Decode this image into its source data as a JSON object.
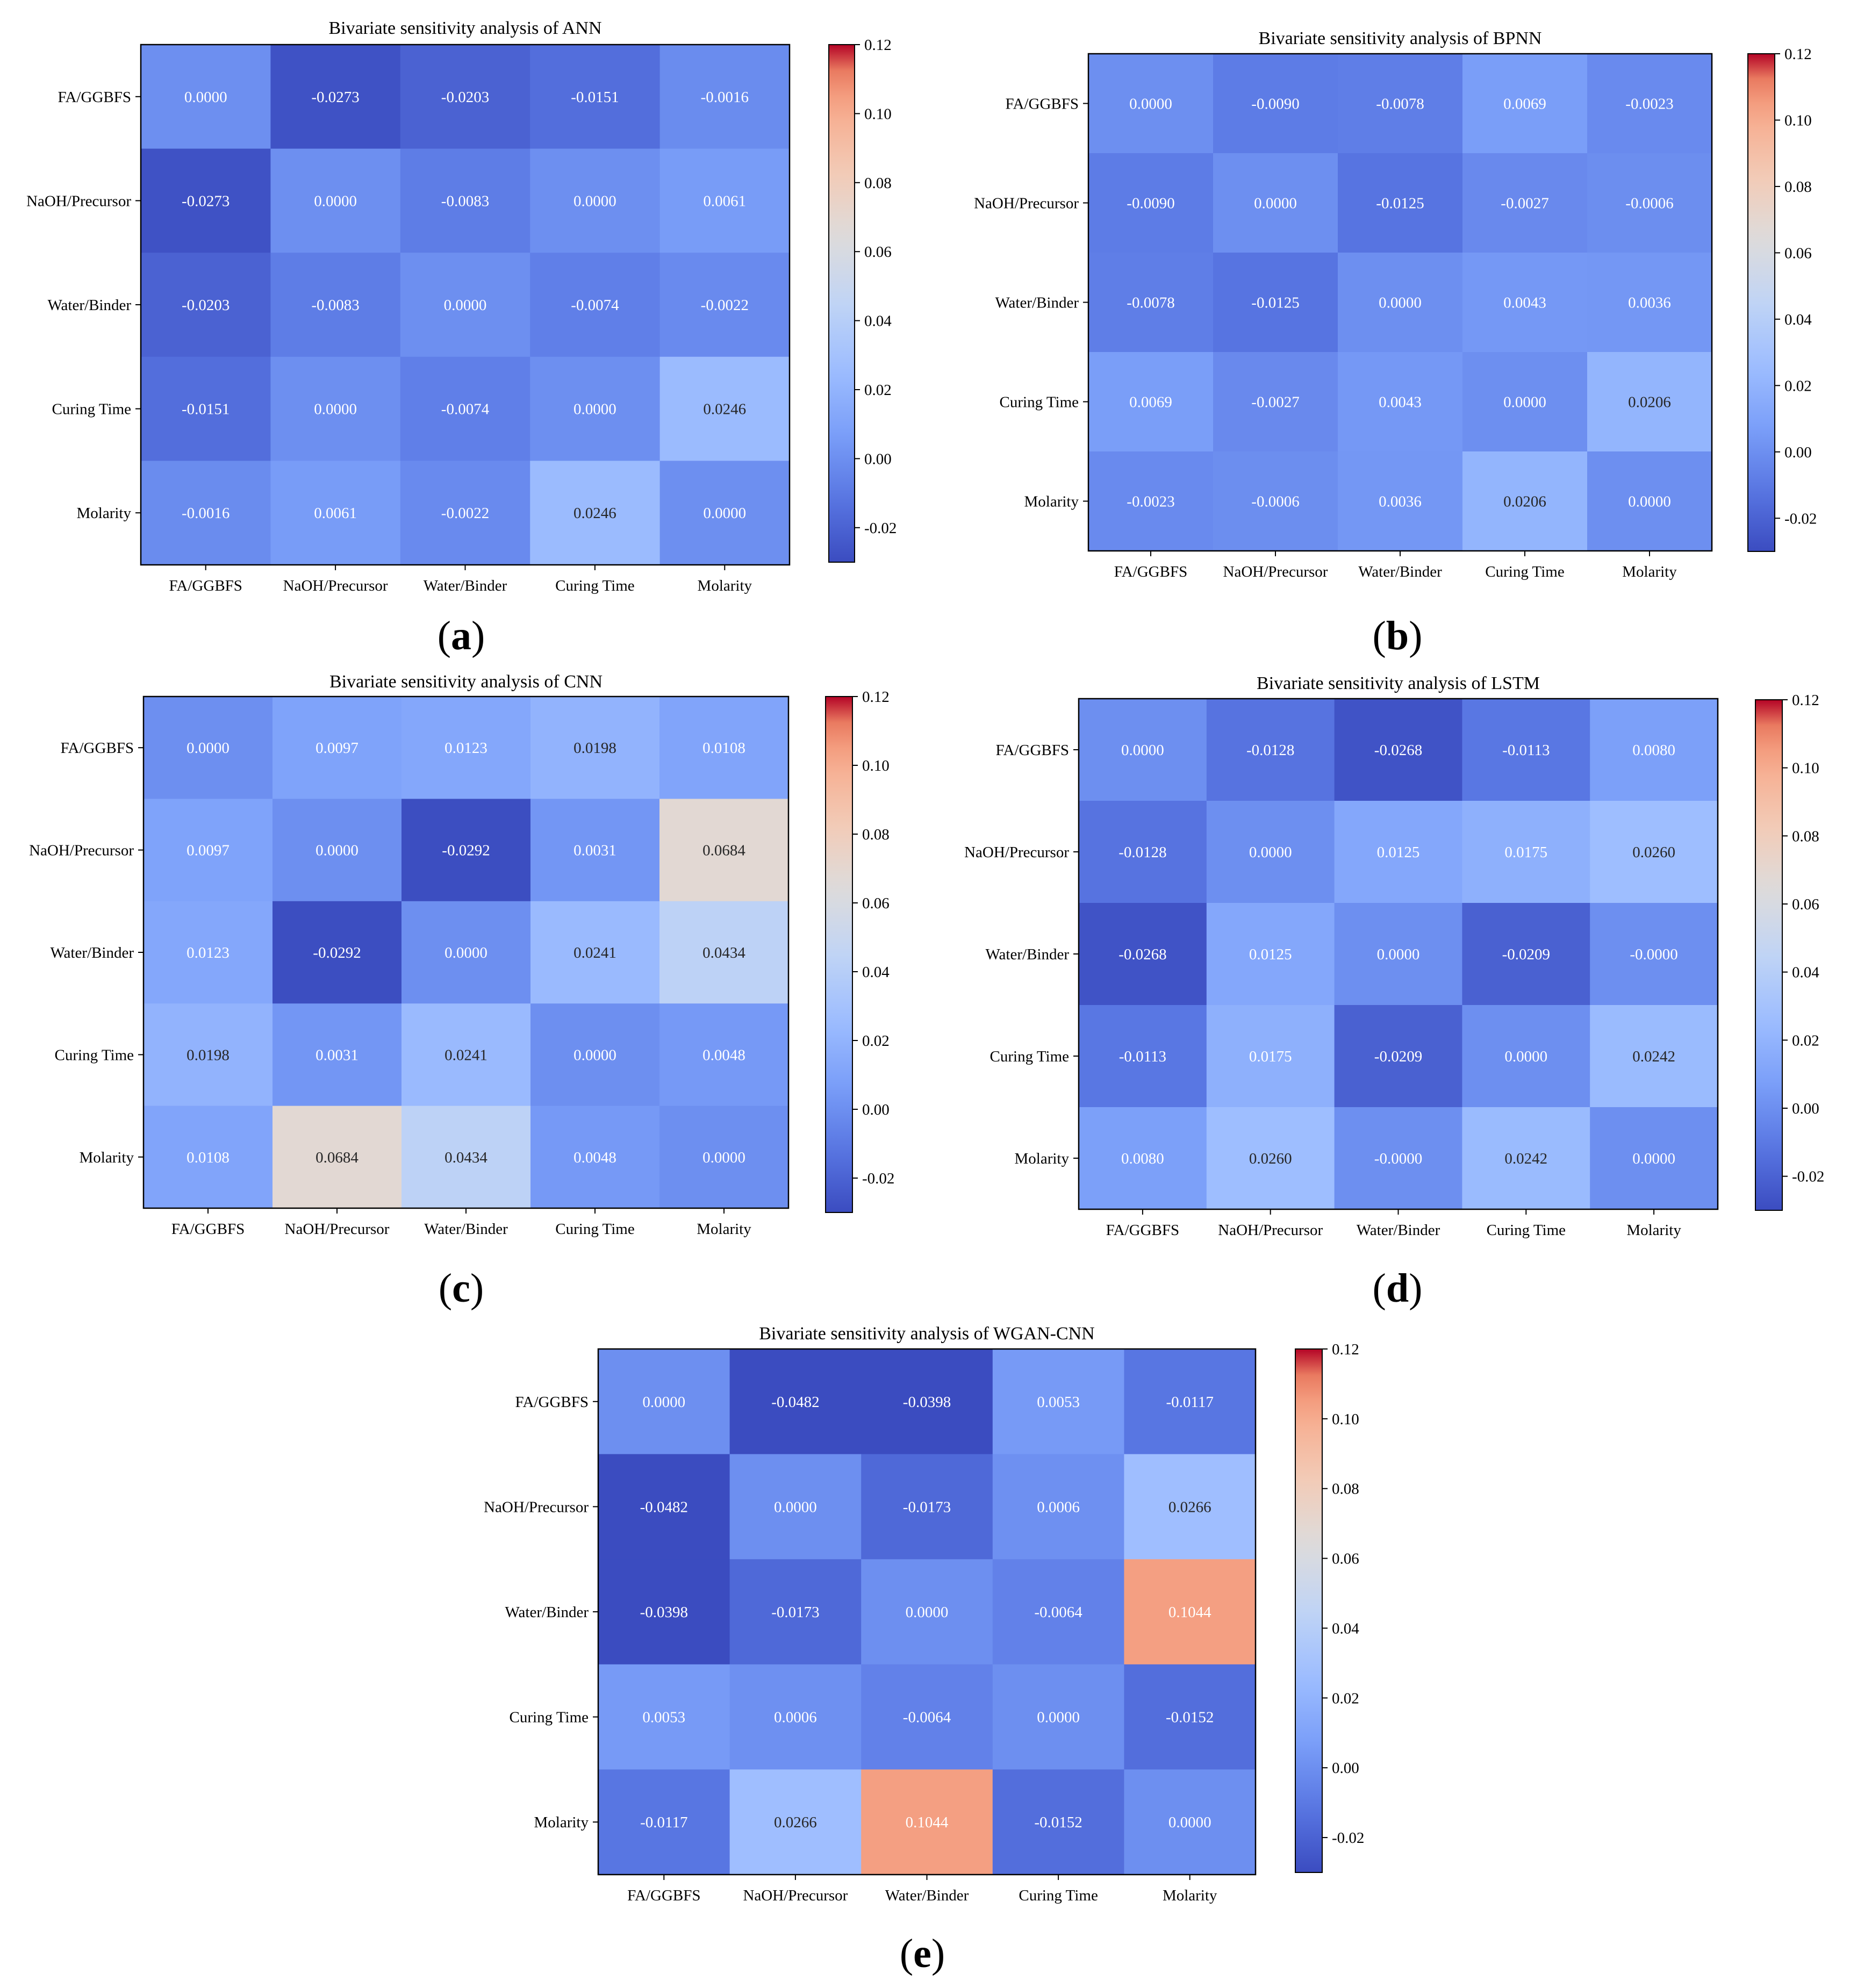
{
  "colormap": {
    "vmin": -0.03,
    "vmax": 0.12,
    "stops": [
      [
        0.0,
        "#3b4cc0"
      ],
      [
        0.125,
        "#5977e3"
      ],
      [
        0.25,
        "#7b9ff9"
      ],
      [
        0.375,
        "#9ebeff"
      ],
      [
        0.5,
        "#c0d4f5"
      ],
      [
        0.625,
        "#dddcdc"
      ],
      [
        0.75,
        "#f2cbb7"
      ],
      [
        0.875,
        "#f7ac8e"
      ],
      [
        1.0,
        "#ee8468"
      ],
      [
        1.0001,
        "#d65244"
      ],
      [
        1.0002,
        "#b40426"
      ]
    ]
  },
  "chart_data": [
    {
      "type": "heatmap",
      "panel_label": "a",
      "title": "Bivariate sensitivity analysis of ANN",
      "x_labels": [
        "FA/GGBFS",
        "NaOH/Precursor",
        "Water/Binder",
        "Curing Time",
        "Molarity"
      ],
      "y_labels": [
        "FA/GGBFS",
        "NaOH/Precursor",
        "Water/Binder",
        "Curing Time",
        "Molarity"
      ],
      "values": [
        [
          0.0,
          -0.0273,
          -0.0203,
          -0.0151,
          -0.0016
        ],
        [
          -0.0273,
          0.0,
          -0.0083,
          0.0,
          0.0061
        ],
        [
          -0.0203,
          -0.0083,
          0.0,
          -0.0074,
          -0.0022
        ],
        [
          -0.0151,
          0.0,
          -0.0074,
          0.0,
          0.0246
        ],
        [
          -0.0016,
          0.0061,
          -0.0022,
          0.0246,
          0.0
        ]
      ],
      "cell_text": [
        [
          "0.0000",
          "-0.0273",
          "-0.0203",
          "-0.0151",
          "-0.0016"
        ],
        [
          "-0.0273",
          "0.0000",
          "-0.0083",
          "0.0000",
          "0.0061"
        ],
        [
          "-0.0203",
          "-0.0083",
          "0.0000",
          "-0.0074",
          "-0.0022"
        ],
        [
          "-0.0151",
          "0.0000",
          "-0.0074",
          "0.0000",
          "0.0246"
        ],
        [
          "-0.0016",
          "0.0061",
          "-0.0022",
          "0.0246",
          "0.0000"
        ]
      ],
      "colorbar": {
        "range": [
          -0.03,
          0.12
        ],
        "ticks": [
          "0.12",
          "0.10",
          "0.08",
          "0.06",
          "0.04",
          "0.02",
          "0.00",
          "-0.02"
        ],
        "tick_values": [
          0.12,
          0.1,
          0.08,
          0.06,
          0.04,
          0.02,
          0.0,
          -0.02
        ]
      }
    },
    {
      "type": "heatmap",
      "panel_label": "b",
      "title": "Bivariate sensitivity analysis of BPNN",
      "x_labels": [
        "FA/GGBFS",
        "NaOH/Precursor",
        "Water/Binder",
        "Curing Time",
        "Molarity"
      ],
      "y_labels": [
        "FA/GGBFS",
        "NaOH/Precursor",
        "Water/Binder",
        "Curing Time",
        "Molarity"
      ],
      "values": [
        [
          0.0,
          -0.009,
          -0.0078,
          0.0069,
          -0.0023
        ],
        [
          -0.009,
          0.0,
          -0.0125,
          -0.0027,
          -0.0006
        ],
        [
          -0.0078,
          -0.0125,
          0.0,
          0.0043,
          0.0036
        ],
        [
          0.0069,
          -0.0027,
          0.0043,
          0.0,
          0.0206
        ],
        [
          -0.0023,
          -0.0006,
          0.0036,
          0.0206,
          0.0
        ]
      ],
      "cell_text": [
        [
          "0.0000",
          "-0.0090",
          "-0.0078",
          "0.0069",
          "-0.0023"
        ],
        [
          "-0.0090",
          "0.0000",
          "-0.0125",
          "-0.0027",
          "-0.0006"
        ],
        [
          "-0.0078",
          "-0.0125",
          "0.0000",
          "0.0043",
          "0.0036"
        ],
        [
          "0.0069",
          "-0.0027",
          "0.0043",
          "0.0000",
          "0.0206"
        ],
        [
          "-0.0023",
          "-0.0006",
          "0.0036",
          "0.0206",
          "0.0000"
        ]
      ],
      "colorbar": {
        "range": [
          -0.03,
          0.12
        ],
        "ticks": [
          "0.12",
          "0.10",
          "0.08",
          "0.06",
          "0.04",
          "0.02",
          "0.00",
          "-0.02"
        ],
        "tick_values": [
          0.12,
          0.1,
          0.08,
          0.06,
          0.04,
          0.02,
          0.0,
          -0.02
        ]
      }
    },
    {
      "type": "heatmap",
      "panel_label": "c",
      "title": "Bivariate sensitivity analysis of CNN",
      "x_labels": [
        "FA/GGBFS",
        "NaOH/Precursor",
        "Water/Binder",
        "Curing Time",
        "Molarity"
      ],
      "y_labels": [
        "FA/GGBFS",
        "NaOH/Precursor",
        "Water/Binder",
        "Curing Time",
        "Molarity"
      ],
      "values": [
        [
          0.0,
          0.0097,
          0.0123,
          0.0198,
          0.0108
        ],
        [
          0.0097,
          0.0,
          -0.0292,
          0.0031,
          0.0684
        ],
        [
          0.0123,
          -0.0292,
          0.0,
          0.0241,
          0.0434
        ],
        [
          0.0198,
          0.0031,
          0.0241,
          0.0,
          0.0048
        ],
        [
          0.0108,
          0.0684,
          0.0434,
          0.0048,
          0.0
        ]
      ],
      "cell_text": [
        [
          "0.0000",
          "0.0097",
          "0.0123",
          "0.0198",
          "0.0108"
        ],
        [
          "0.0097",
          "0.0000",
          "-0.0292",
          "0.0031",
          "0.0684"
        ],
        [
          "0.0123",
          "-0.0292",
          "0.0000",
          "0.0241",
          "0.0434"
        ],
        [
          "0.0198",
          "0.0031",
          "0.0241",
          "0.0000",
          "0.0048"
        ],
        [
          "0.0108",
          "0.0684",
          "0.0434",
          "0.0048",
          "0.0000"
        ]
      ],
      "colorbar": {
        "range": [
          -0.03,
          0.12
        ],
        "ticks": [
          "0.12",
          "0.10",
          "0.08",
          "0.06",
          "0.04",
          "0.02",
          "0.00",
          "-0.02"
        ],
        "tick_values": [
          0.12,
          0.1,
          0.08,
          0.06,
          0.04,
          0.02,
          0.0,
          -0.02
        ]
      }
    },
    {
      "type": "heatmap",
      "panel_label": "d",
      "title": "Bivariate sensitivity analysis of LSTM",
      "x_labels": [
        "FA/GGBFS",
        "NaOH/Precursor",
        "Water/Binder",
        "Curing Time",
        "Molarity"
      ],
      "y_labels": [
        "FA/GGBFS",
        "NaOH/Precursor",
        "Water/Binder",
        "Curing Time",
        "Molarity"
      ],
      "values": [
        [
          0.0,
          -0.0128,
          -0.0268,
          -0.0113,
          0.008
        ],
        [
          -0.0128,
          0.0,
          0.0125,
          0.0175,
          0.026
        ],
        [
          -0.0268,
          0.0125,
          0.0,
          -0.0209,
          -0.0
        ],
        [
          -0.0113,
          0.0175,
          -0.0209,
          0.0,
          0.0242
        ],
        [
          0.008,
          0.026,
          -0.0,
          0.0242,
          0.0
        ]
      ],
      "cell_text": [
        [
          "0.0000",
          "-0.0128",
          "-0.0268",
          "-0.0113",
          "0.0080"
        ],
        [
          "-0.0128",
          "0.0000",
          "0.0125",
          "0.0175",
          "0.0260"
        ],
        [
          "-0.0268",
          "0.0125",
          "0.0000",
          "-0.0209",
          "-0.0000"
        ],
        [
          "-0.0113",
          "0.0175",
          "-0.0209",
          "0.0000",
          "0.0242"
        ],
        [
          "0.0080",
          "0.0260",
          "-0.0000",
          "0.0242",
          "0.0000"
        ]
      ],
      "colorbar": {
        "range": [
          -0.03,
          0.12
        ],
        "ticks": [
          "0.12",
          "0.10",
          "0.08",
          "0.06",
          "0.04",
          "0.02",
          "0.00",
          "-0.02"
        ],
        "tick_values": [
          0.12,
          0.1,
          0.08,
          0.06,
          0.04,
          0.02,
          0.0,
          -0.02
        ]
      }
    },
    {
      "type": "heatmap",
      "panel_label": "e",
      "title": "Bivariate sensitivity analysis of WGAN-CNN",
      "x_labels": [
        "FA/GGBFS",
        "NaOH/Precursor",
        "Water/Binder",
        "Curing Time",
        "Molarity"
      ],
      "y_labels": [
        "FA/GGBFS",
        "NaOH/Precursor",
        "Water/Binder",
        "Curing Time",
        "Molarity"
      ],
      "values": [
        [
          0.0,
          -0.0482,
          -0.0398,
          0.0053,
          -0.0117
        ],
        [
          -0.0482,
          0.0,
          -0.0173,
          0.0006,
          0.0266
        ],
        [
          -0.0398,
          -0.0173,
          0.0,
          -0.0064,
          0.1044
        ],
        [
          0.0053,
          0.0006,
          -0.0064,
          0.0,
          -0.0152
        ],
        [
          -0.0117,
          0.0266,
          0.1044,
          -0.0152,
          0.0
        ]
      ],
      "cell_text": [
        [
          "0.0000",
          "-0.0482",
          "-0.0398",
          "0.0053",
          "-0.0117"
        ],
        [
          "-0.0482",
          "0.0000",
          "-0.0173",
          "0.0006",
          "0.0266"
        ],
        [
          "-0.0398",
          "-0.0173",
          "0.0000",
          "-0.0064",
          "0.1044"
        ],
        [
          "0.0053",
          "0.0006",
          "-0.0064",
          "0.0000",
          "-0.0152"
        ],
        [
          "-0.0117",
          "0.0266",
          "0.1044",
          "-0.0152",
          "0.0000"
        ]
      ],
      "colorbar": {
        "range": [
          -0.03,
          0.12
        ],
        "ticks": [
          "0.12",
          "0.10",
          "0.08",
          "0.06",
          "0.04",
          "0.02",
          "0.00",
          "-0.02"
        ],
        "tick_values": [
          0.12,
          0.1,
          0.08,
          0.06,
          0.04,
          0.02,
          0.0,
          -0.02
        ]
      }
    }
  ],
  "panel_captions": [
    "(a)",
    "(b)",
    "(c)",
    "(d)",
    "(e)"
  ]
}
